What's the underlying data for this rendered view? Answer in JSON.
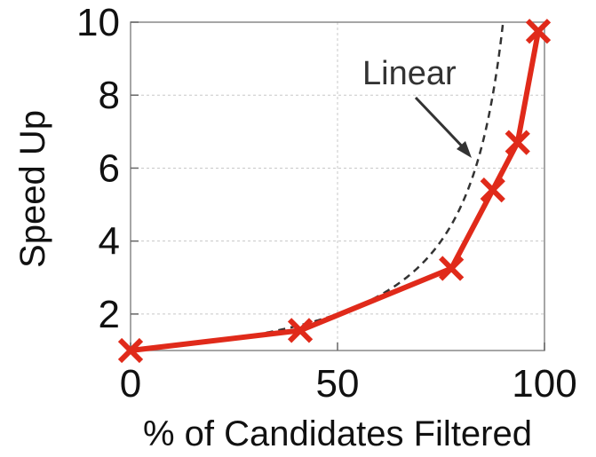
{
  "chart_data": {
    "type": "line",
    "title": "",
    "xlabel": "% of Candidates Filtered",
    "ylabel": "Speed Up",
    "xlim": [
      0,
      100
    ],
    "ylim": [
      1,
      10
    ],
    "x_ticks": [
      "0",
      "50",
      "100"
    ],
    "y_ticks": [
      "2",
      "4",
      "6",
      "8",
      "10"
    ],
    "grid": true,
    "series": [
      {
        "name": "",
        "color": "#e02a1a",
        "marker": "x",
        "x": [
          0,
          41,
          77.5,
          87.5,
          93.5,
          98.5
        ],
        "y": [
          1.0,
          1.55,
          3.25,
          5.4,
          6.7,
          9.75
        ]
      }
    ],
    "reference_curve": {
      "label": "Linear",
      "style": "dashed",
      "color": "#333333",
      "formula": "1/(1-x/100)"
    },
    "annotations": [
      {
        "text": "Linear"
      }
    ]
  }
}
